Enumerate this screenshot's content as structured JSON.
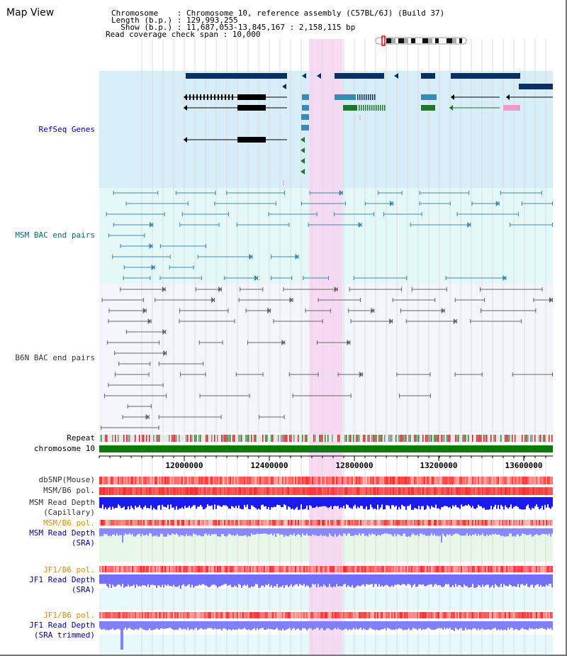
{
  "title": "Map View",
  "info": {
    "chromosome": "Chromosome    : Chromosome 10, reference assembly (C57BL/6J) (Build 37)",
    "length": "Length (b.p.) : 129,993,255",
    "show": "  Show (b.p.) : 11,687,053-13,845,167 : 2,158,115 bp",
    "coverage": "Read coverage check span : 10,000"
  },
  "tracks": {
    "refseq": "RefSeq Genes",
    "msm_bac": "MSM BAC end pairs",
    "b6n_bac": "B6N BAC end pairs",
    "repeat": "Repeat",
    "chromosome": "chromosome 10",
    "dbsnp": "dbSNP(Mouse)",
    "msm_b6_pol": "MSM/B6 pol.",
    "msm_depth_cap": "MSM Read Depth\n(Capillary)",
    "msm_b6_pol2": "MSM/B6 pol.",
    "msm_depth_sra": "MSM Read Depth\n(SRA)",
    "jf1_b6_pol": "JF1/B6 pol.",
    "jf1_depth_sra": "JF1 Read Depth\n(SRA)",
    "jf1_b6_pol2": "JF1/B6 pol.",
    "jf1_depth_trim": "JF1 Read Depth\n(SRA trimmed)"
  },
  "axis": {
    "ticks": [
      "12000000",
      "12400000",
      "12800000",
      "13200000",
      "13600000"
    ]
  },
  "colors": {
    "refseq_bg": "#d7eef8",
    "msm_bg": "#e4f8f8",
    "b6n_bg": "#f2f6fa",
    "highlight": "#f7d6f2",
    "refseq_label": "#0000aa",
    "msm_label": "#006a7a",
    "b6n_label": "#333333",
    "orange_label": "#e08a00",
    "blue_label": "#0000aa"
  }
}
